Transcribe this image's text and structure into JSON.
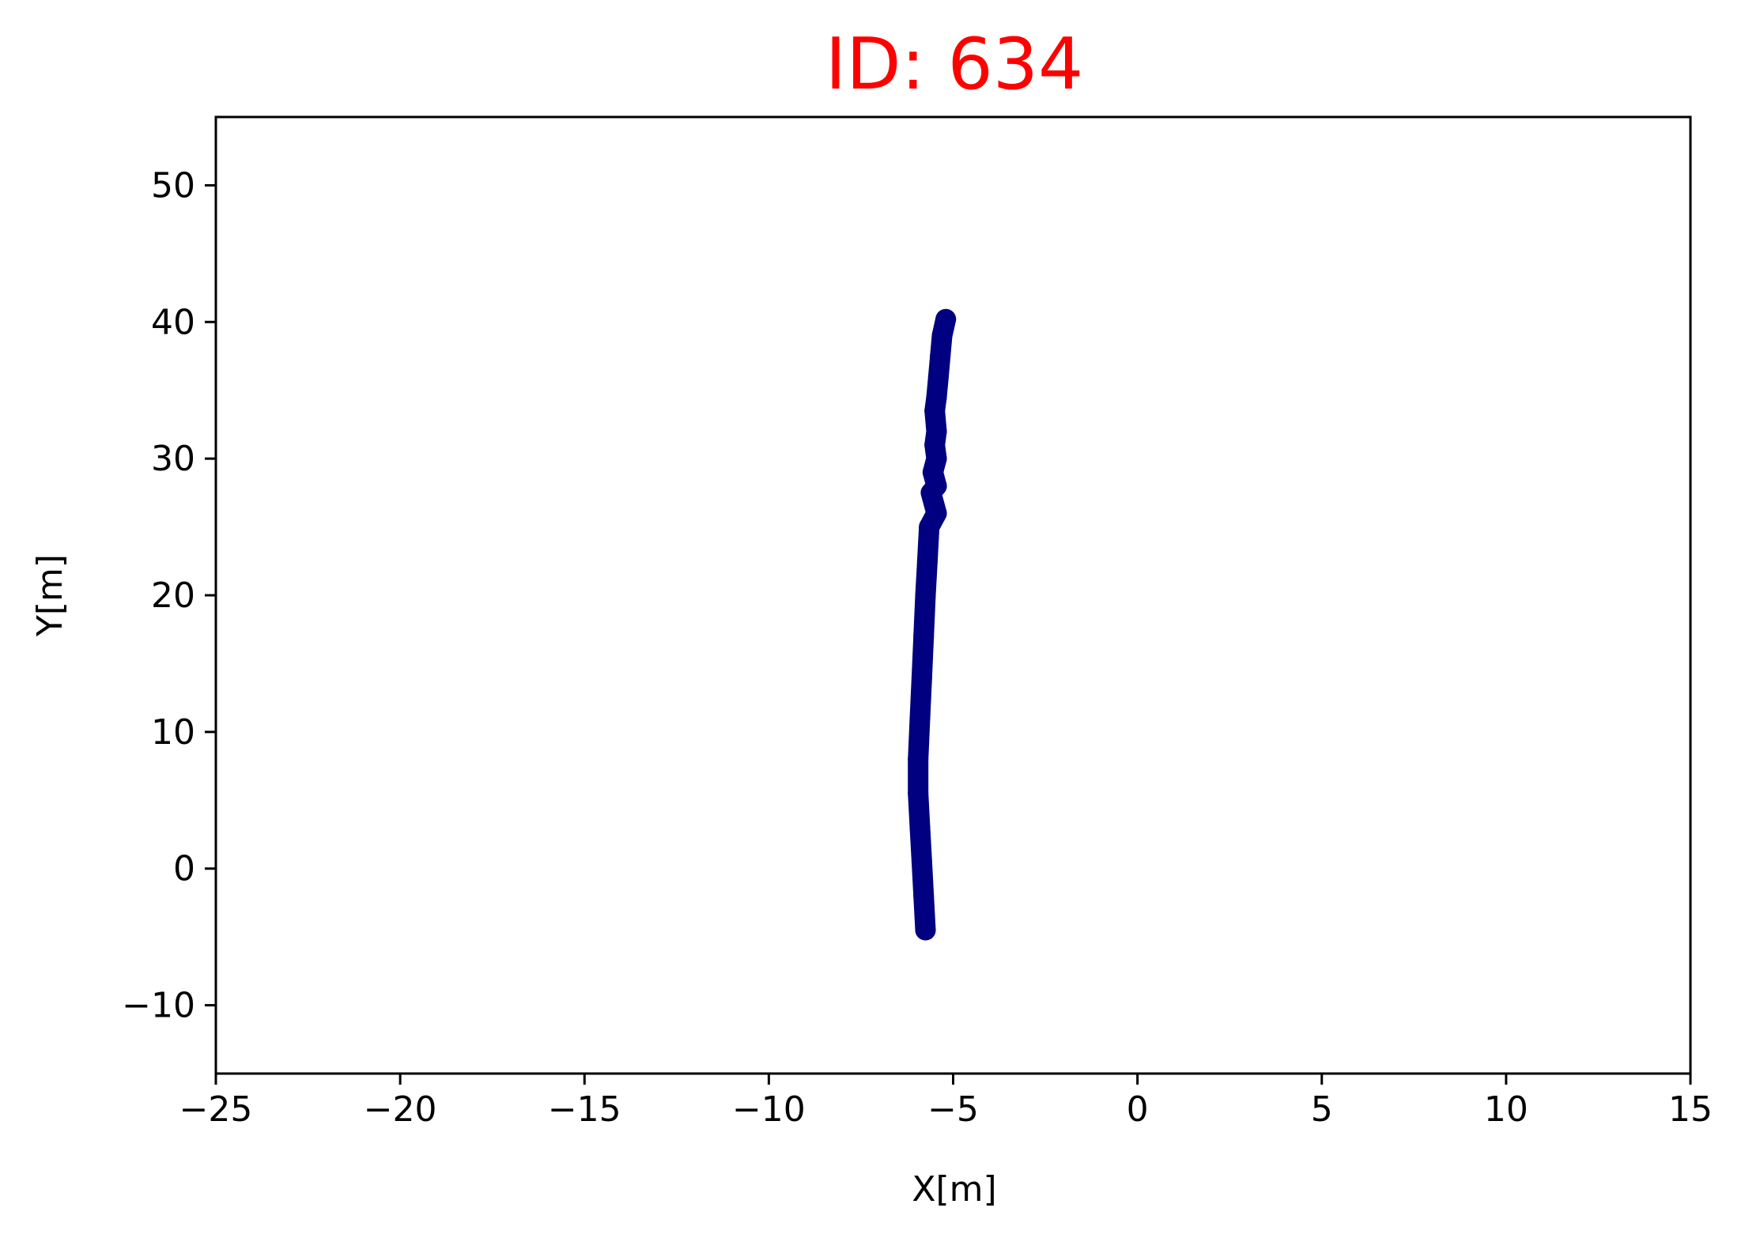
{
  "chart_data": {
    "type": "scatter",
    "title": "ID: 634",
    "title_color": "#ff0000",
    "xlabel": "X[m]",
    "ylabel": "Y[m]",
    "xlim": [
      -25,
      15
    ],
    "ylim": [
      -15,
      55
    ],
    "xticks": [
      -25,
      -20,
      -15,
      -10,
      -5,
      0,
      5,
      10,
      15
    ],
    "xtick_labels": [
      "−25",
      "−20",
      "−15",
      "−10",
      "−5",
      "0",
      "5",
      "10",
      "15"
    ],
    "yticks": [
      -10,
      0,
      10,
      20,
      30,
      40,
      50
    ],
    "ytick_labels": [
      "−10",
      "0",
      "10",
      "20",
      "30",
      "40",
      "50"
    ],
    "grid": false,
    "series": [
      {
        "color": "#000080",
        "x": [
          -5.75,
          -5.8,
          -5.85,
          -5.9,
          -5.95,
          -5.95,
          -5.9,
          -5.85,
          -5.8,
          -5.75,
          -5.7,
          -5.65,
          -5.6,
          -5.55,
          -5.5,
          -5.45,
          -5.45,
          -5.45,
          -5.45,
          -5.5,
          -5.45,
          -5.4,
          -5.35,
          -5.3,
          -5.2
        ],
        "y": [
          -4.5,
          -2.0,
          0.5,
          3.0,
          5.5,
          8.0,
          11.0,
          14.0,
          17.0,
          20.0,
          22.5,
          25.0,
          27.5,
          29.0,
          31.0,
          26.0,
          28.0,
          30.0,
          32.0,
          33.5,
          34.5,
          36.0,
          37.5,
          39.0,
          40.2
        ]
      }
    ]
  }
}
